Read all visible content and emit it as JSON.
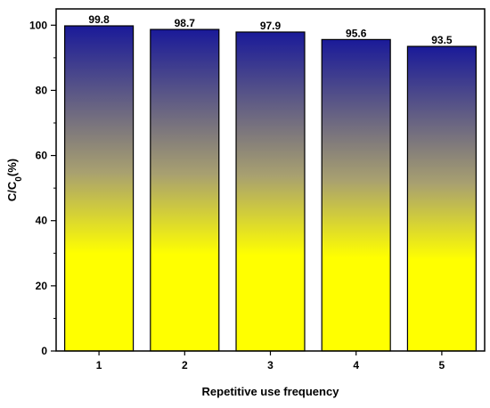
{
  "chart_data": {
    "type": "bar",
    "categories": [
      "1",
      "2",
      "3",
      "4",
      "5"
    ],
    "values": [
      99.8,
      98.7,
      97.9,
      95.6,
      93.5
    ],
    "data_labels": [
      "99.8",
      "98.7",
      "97.9",
      "95.6",
      "93.5"
    ],
    "xlabel": "Repetitive use frequency",
    "ylabel": {
      "main": "C/C",
      "subscript": "0",
      "suffix": "(%)"
    },
    "ylim": [
      0,
      105
    ],
    "yticks": [
      0,
      20,
      40,
      60,
      80,
      100
    ],
    "ytick_labels": [
      "0",
      "20",
      "40",
      "60",
      "80",
      "100"
    ],
    "grid": false,
    "legend": "none",
    "colors": {
      "bar_top": "#1a1a99",
      "bar_mid": "#a8a070",
      "bar_bottom": "#ffff00",
      "bar_edge": "#000000"
    }
  }
}
